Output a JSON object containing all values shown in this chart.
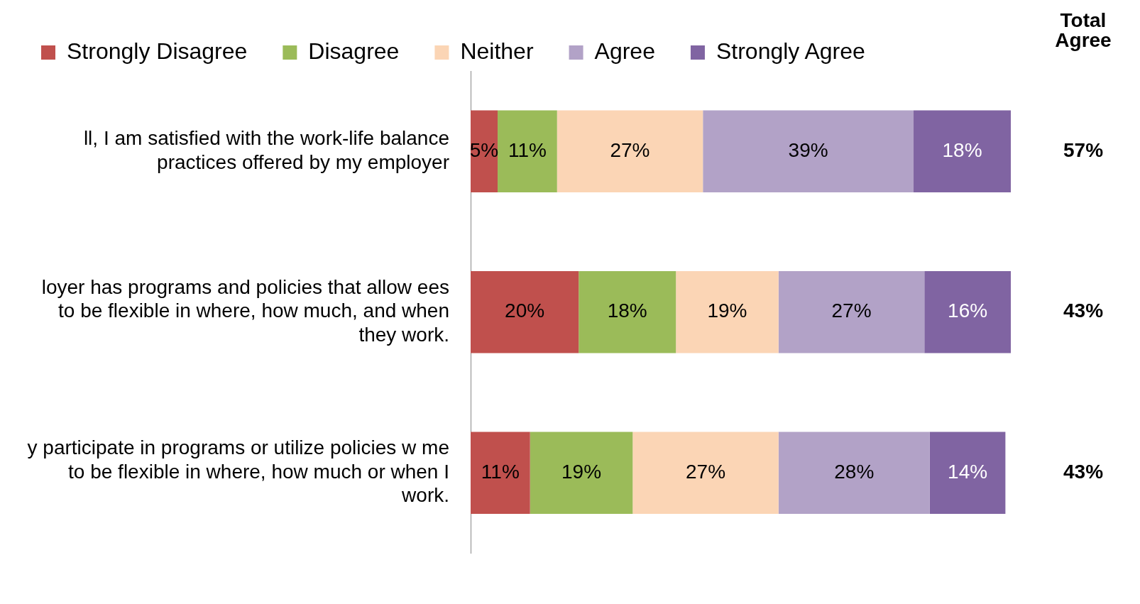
{
  "chart_data": {
    "type": "bar",
    "orientation": "horizontal",
    "stacked": true,
    "categories": [
      "ll, I am satisfied with the work-life balance practices offered by my employer",
      "loyer has programs and policies that allow ees to be flexible in where, how much, and when they work.",
      "y participate in programs or utilize policies w me to be flexible in where, how much or when I work."
    ],
    "series": [
      {
        "name": "Strongly Disagree",
        "color": "#c0504d",
        "values": [
          5,
          20,
          11
        ],
        "value_labels": [
          "5%",
          "20%",
          "11%"
        ]
      },
      {
        "name": "Disagree",
        "color": "#9bbb59",
        "values": [
          11,
          18,
          19
        ],
        "value_labels": [
          "11%",
          "18%",
          "19%"
        ]
      },
      {
        "name": "Neither",
        "color": "#fbd5b5",
        "values": [
          27,
          19,
          27
        ],
        "value_labels": [
          "27%",
          "19%",
          "27%"
        ]
      },
      {
        "name": "Agree",
        "color": "#b2a2c7",
        "values": [
          39,
          27,
          28
        ],
        "value_labels": [
          "39%",
          "27%",
          "28%"
        ]
      },
      {
        "name": "Strongly Agree",
        "color": "#8064a2",
        "values": [
          18,
          16,
          14
        ],
        "value_labels": [
          "18%",
          "16%",
          "14%"
        ]
      }
    ],
    "xlim": [
      0,
      100
    ],
    "annotations": [
      "Total Agree",
      "57%",
      "43%",
      "43%"
    ],
    "legend": "top left",
    "tick_labels": "y"
  }
}
